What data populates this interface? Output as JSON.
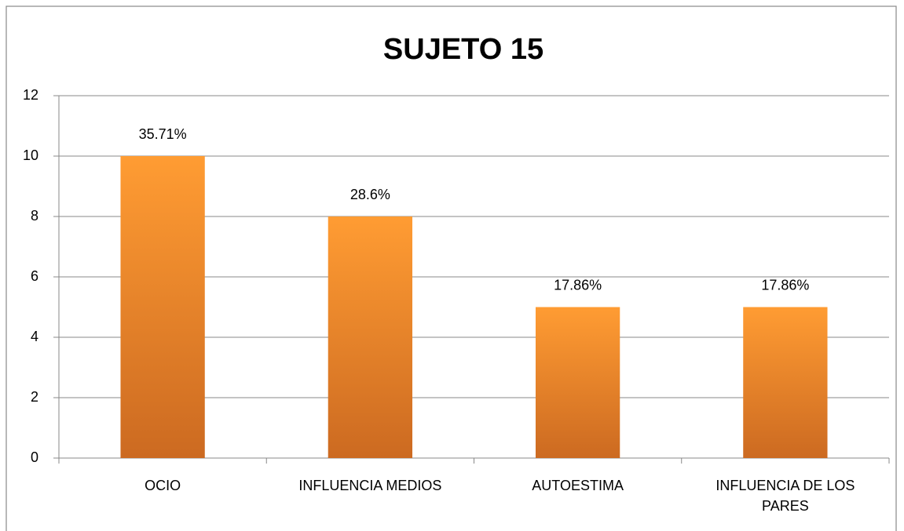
{
  "chart_data": {
    "type": "bar",
    "title": "SUJETO 15",
    "categories": [
      "OCIO",
      "INFLUENCIA MEDIOS",
      "AUTOESTIMA",
      "INFLUENCIA DE LOS PARES"
    ],
    "values": [
      10,
      8,
      5,
      5
    ],
    "value_labels": [
      "35.71%",
      "28.6%",
      "17.86%",
      "17.86%"
    ],
    "gradient": [
      "#ff9c33",
      "#cc6a21"
    ],
    "ylim": [
      0,
      12
    ],
    "yticks": [
      0,
      2,
      4,
      6,
      8,
      10,
      12
    ],
    "grid": true
  }
}
